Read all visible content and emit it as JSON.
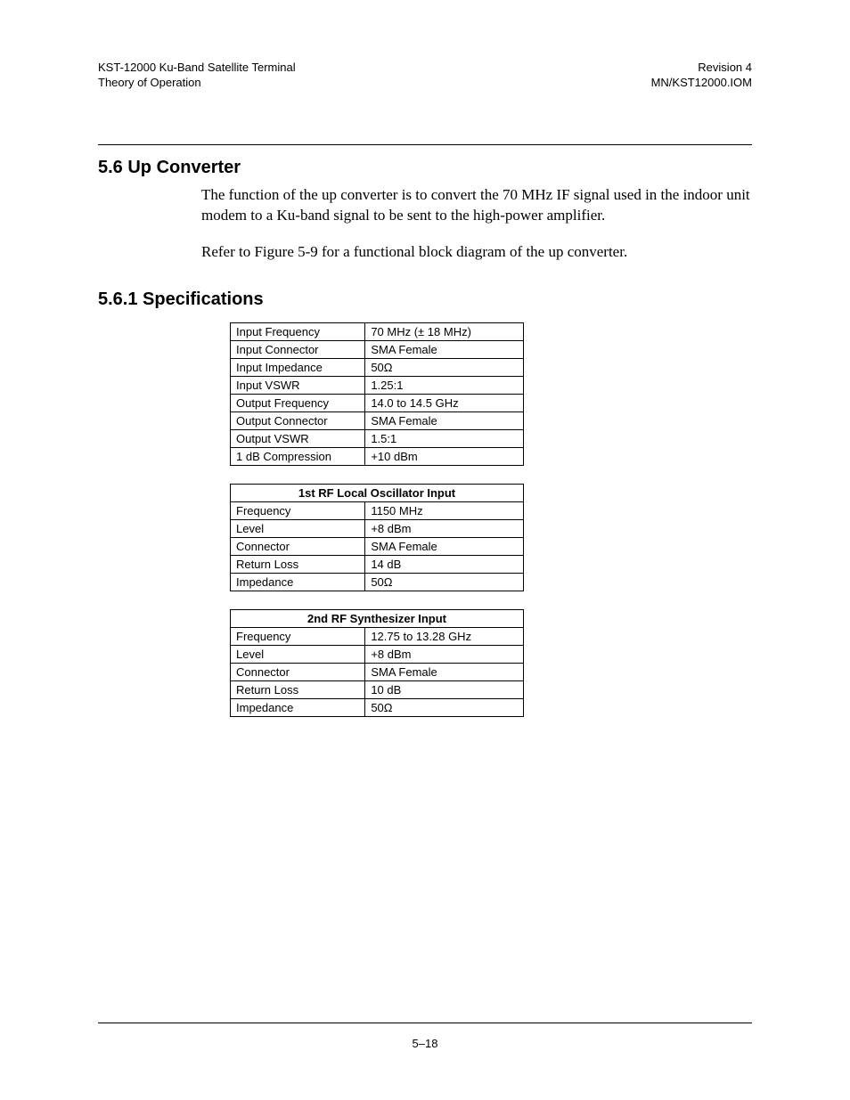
{
  "header": {
    "left_line1": "KST-12000 Ku-Band Satellite Terminal",
    "left_line2": "Theory of Operation",
    "right_line1": "Revision 4",
    "right_line2": "MN/KST12000.IOM"
  },
  "section": {
    "number_title": "5.6  Up Converter",
    "para1": "The function of the up converter is to convert the 70 MHz IF signal used in the indoor unit modem to a Ku-band signal to be sent to the high-power amplifier.",
    "para2": "Refer to Figure 5-9 for a functional block diagram of the up converter."
  },
  "subsection": {
    "number_title": "5.6.1  Specifications"
  },
  "table1": {
    "rows": [
      [
        "Input Frequency",
        "70 MHz (± 18 MHz)"
      ],
      [
        "Input Connector",
        "SMA Female"
      ],
      [
        "Input Impedance",
        "50Ω"
      ],
      [
        "Input VSWR",
        "1.25:1"
      ],
      [
        "Output Frequency",
        "14.0 to 14.5 GHz"
      ],
      [
        "Output Connector",
        "SMA Female"
      ],
      [
        "Output VSWR",
        "1.5:1"
      ],
      [
        "1 dB Compression",
        "+10 dBm"
      ]
    ]
  },
  "table2": {
    "header": "1st RF Local Oscillator Input",
    "rows": [
      [
        "Frequency",
        "1150 MHz"
      ],
      [
        "Level",
        "+8 dBm"
      ],
      [
        "Connector",
        "SMA Female"
      ],
      [
        "Return Loss",
        "14 dB"
      ],
      [
        "Impedance",
        "50Ω"
      ]
    ]
  },
  "table3": {
    "header": "2nd RF Synthesizer Input",
    "rows": [
      [
        "Frequency",
        "12.75 to 13.28 GHz"
      ],
      [
        "Level",
        "+8 dBm"
      ],
      [
        "Connector",
        "SMA Female"
      ],
      [
        "Return Loss",
        "10 dB"
      ],
      [
        "Impedance",
        "50Ω"
      ]
    ]
  },
  "footer": {
    "page_num": "5–18"
  }
}
